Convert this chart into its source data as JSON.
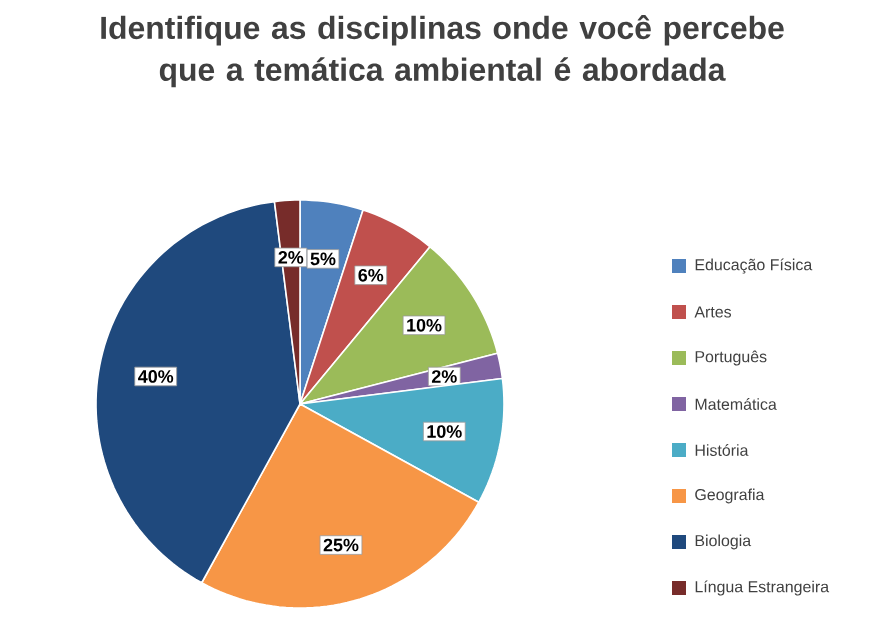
{
  "chart_data": {
    "type": "pie",
    "title": "Identifique as disciplinas onde você percebe que a temática ambiental é abordada",
    "categories": [
      "Educação Física",
      "Artes",
      "Português",
      "Matemática",
      "História",
      "Geografia",
      "Biologia",
      "Língua Estrangeira"
    ],
    "values": [
      5,
      6,
      10,
      2,
      10,
      25,
      40,
      2
    ],
    "value_labels": [
      "5%",
      "6%",
      "10%",
      "2%",
      "10%",
      "25%",
      "40%",
      "2%"
    ],
    "colors": [
      "#4f81bd",
      "#c0504d",
      "#9bbb59",
      "#8064a2",
      "#4bacc6",
      "#f79646",
      "#1f497d",
      "#772c2a"
    ],
    "legend": "right"
  }
}
